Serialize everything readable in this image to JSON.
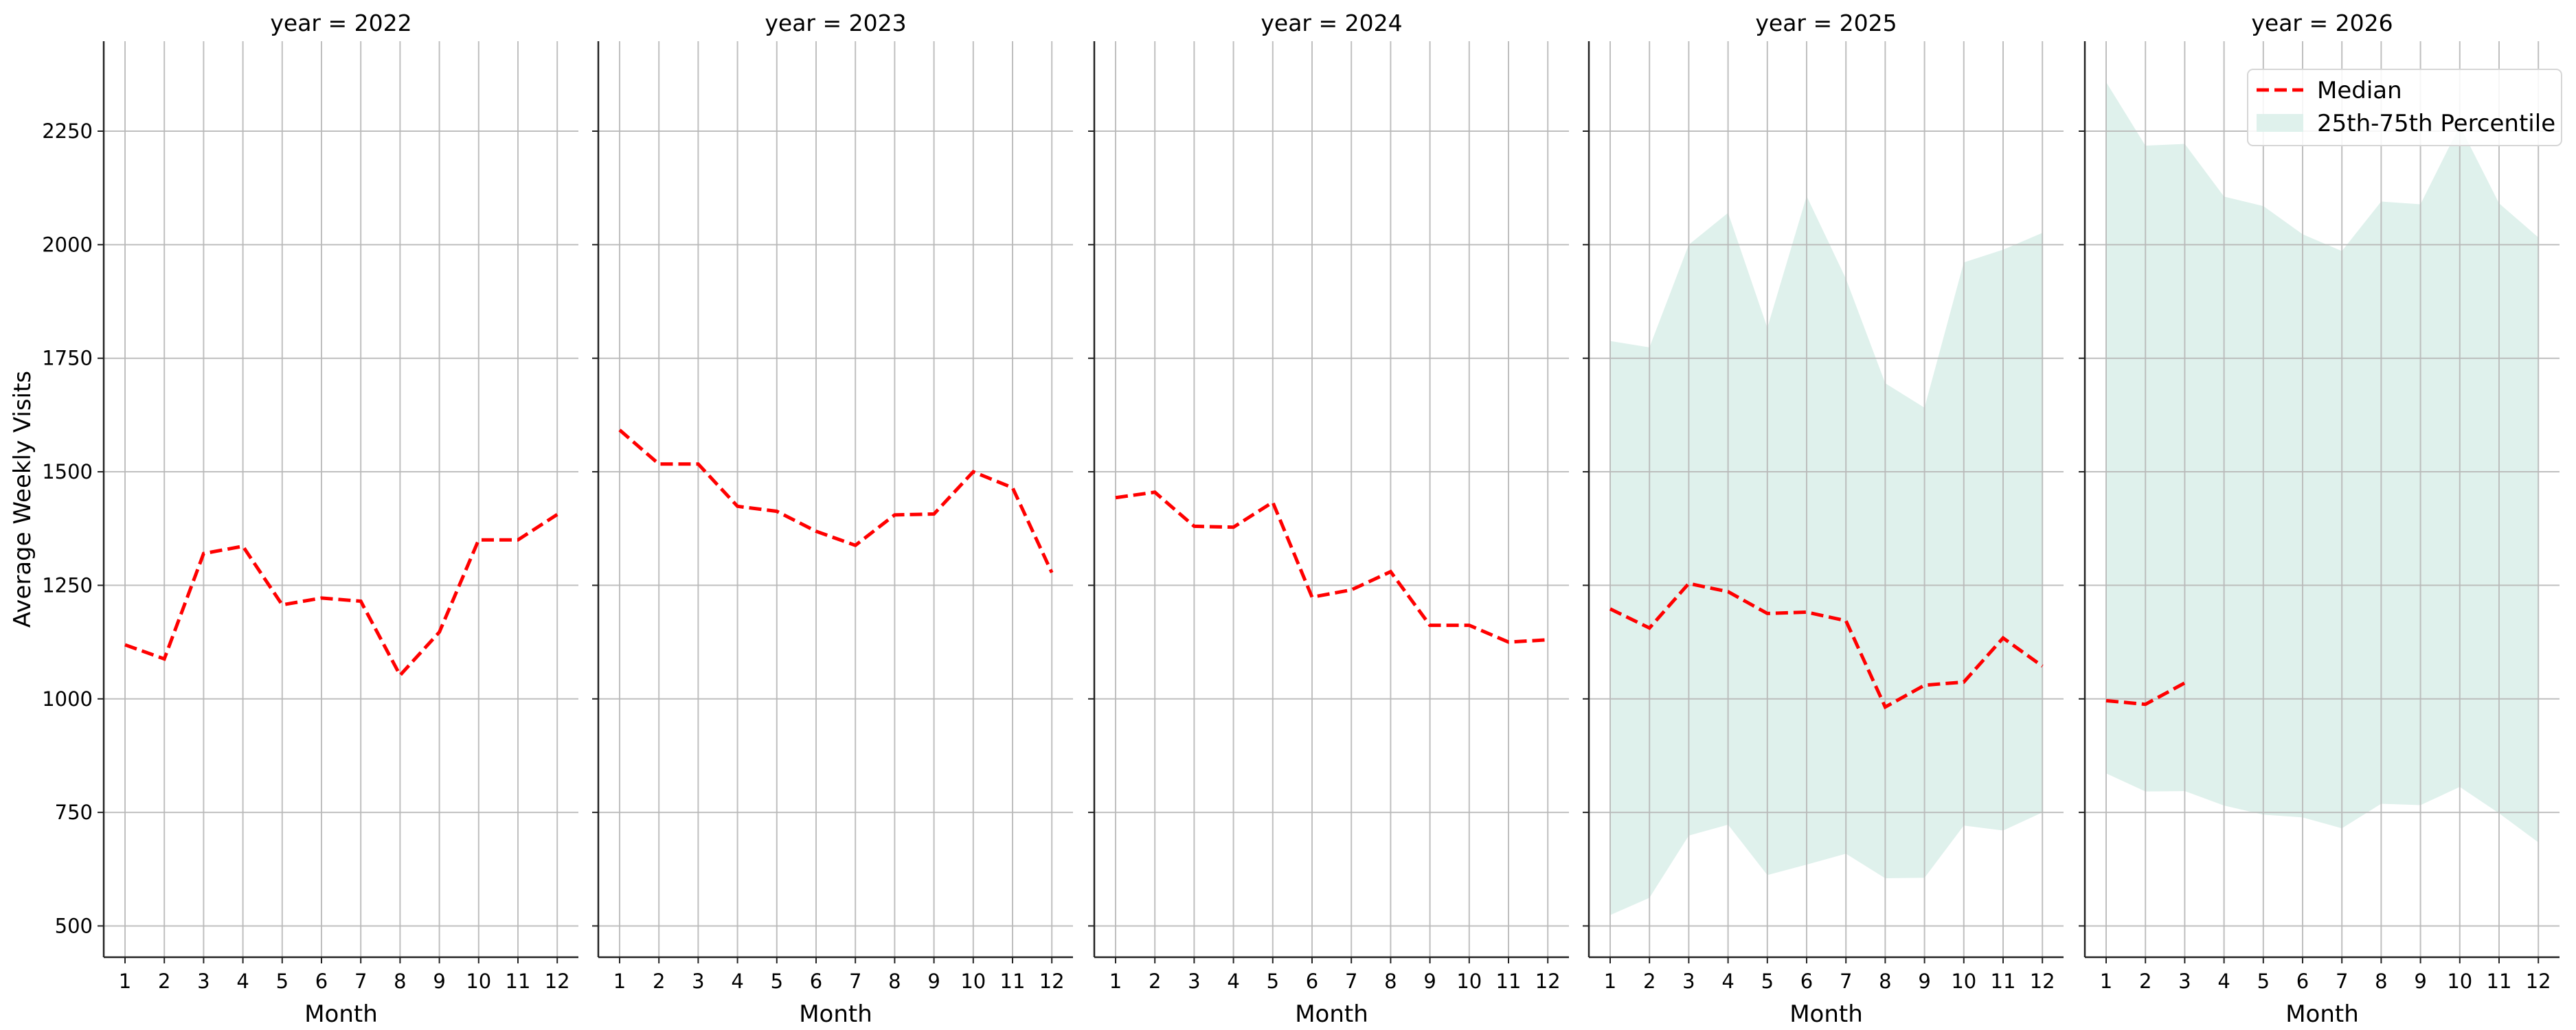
{
  "chart_data": {
    "type": "line",
    "title": "",
    "facet_variable": "year",
    "facet_title_format": "year = {v}",
    "xlabel": "Month",
    "ylabel": "Average Weekly Visits",
    "x": [
      1,
      2,
      3,
      4,
      5,
      6,
      7,
      8,
      9,
      10,
      11,
      12
    ],
    "x_tick_labels": [
      "1",
      "2",
      "3",
      "4",
      "5",
      "6",
      "7",
      "8",
      "9",
      "10",
      "11",
      "12"
    ],
    "y_ticks": [
      500,
      750,
      1000,
      1250,
      1500,
      1750,
      2000,
      2250
    ],
    "y_tick_labels": [
      "500",
      "750",
      "1000",
      "1250",
      "1500",
      "1750",
      "2000",
      "2250"
    ],
    "ylim": [
      430,
      2450
    ],
    "grid": true,
    "legend": {
      "position": "upper right (last panel)",
      "entries": [
        {
          "label": "Median",
          "style": "dashed line",
          "color": "#ff0000"
        },
        {
          "label": "25th-75th Percentile",
          "style": "filled band",
          "color": "#dff1ec"
        }
      ]
    },
    "colors": {
      "median": "#ff0000",
      "band": "#dff1ec",
      "grid": "#b8b8b8",
      "axis": "#222222"
    },
    "panels": [
      {
        "year": "2022",
        "title": "year = 2022",
        "median": [
          1119,
          1088,
          1320,
          1336,
          1207,
          1222,
          1215,
          1052,
          1147,
          1350,
          1350,
          1406
        ],
        "p25": null,
        "p75": null
      },
      {
        "year": "2023",
        "title": "year = 2023",
        "median": [
          1592,
          1517,
          1517,
          1424,
          1413,
          1369,
          1338,
          1405,
          1407,
          1500,
          1465,
          1278
        ],
        "p25": null,
        "p75": null
      },
      {
        "year": "2024",
        "title": "year = 2024",
        "median": [
          1443,
          1455,
          1380,
          1378,
          1433,
          1224,
          1240,
          1280,
          1162,
          1162,
          1125,
          1130
        ],
        "p25": null,
        "p75": null
      },
      {
        "year": "2025",
        "title": "year = 2025",
        "median": [
          1198,
          1156,
          1254,
          1236,
          1188,
          1191,
          1172,
          982,
          1030,
          1037,
          1134,
          1072
        ],
        "p25": [
          524,
          562,
          699,
          723,
          612,
          635,
          659,
          605,
          606,
          721,
          710,
          750
        ],
        "p75": [
          1788,
          1774,
          2000,
          2070,
          1817,
          2107,
          1925,
          1695,
          1641,
          1961,
          1989,
          2026
        ]
      },
      {
        "year": "2026",
        "title": "year = 2026",
        "median": [
          996,
          988,
          1035,
          null,
          null,
          null,
          null,
          null,
          null,
          null,
          null,
          null
        ],
        "p25": [
          836,
          796,
          797,
          765,
          745,
          739,
          715,
          769,
          766,
          806,
          748,
          684
        ],
        "p75": [
          2358,
          2218,
          2222,
          2106,
          2085,
          2023,
          1986,
          2095,
          2089,
          2262,
          2091,
          2016
        ]
      }
    ]
  }
}
